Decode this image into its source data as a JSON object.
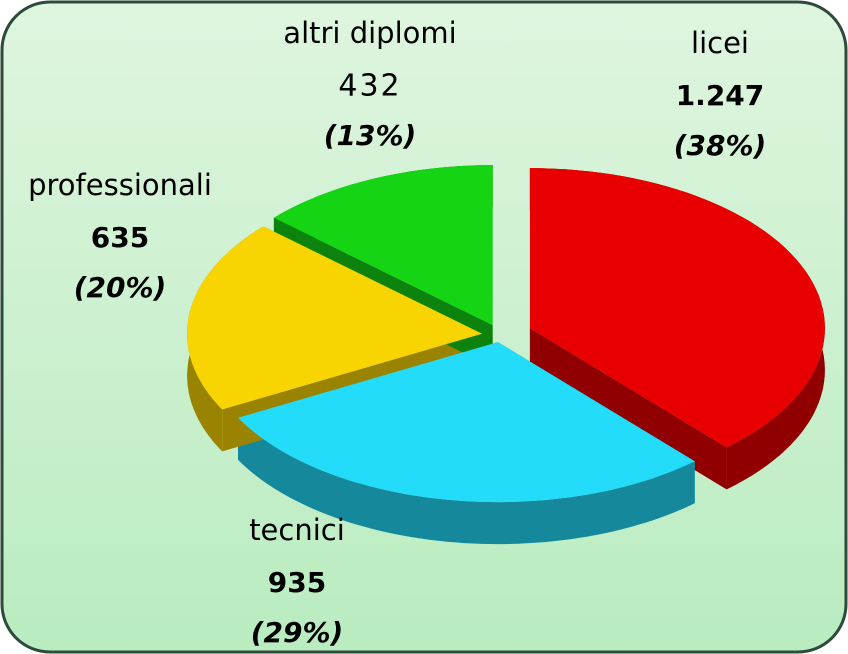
{
  "chart_data": {
    "type": "pie",
    "categories": [
      "licei",
      "tecnici",
      "professionali",
      "altri diplomi"
    ],
    "values": [
      1247,
      935,
      635,
      432
    ],
    "value_labels": [
      "1.247",
      "935",
      "635",
      "432"
    ],
    "percents": [
      38,
      29,
      20,
      13
    ],
    "percent_labels": [
      "(38%)",
      "(29%)",
      "(20%)",
      "(13%)"
    ],
    "colors": [
      "#e80000",
      "#22dcfa",
      "#f8d400",
      "#14d414"
    ]
  }
}
